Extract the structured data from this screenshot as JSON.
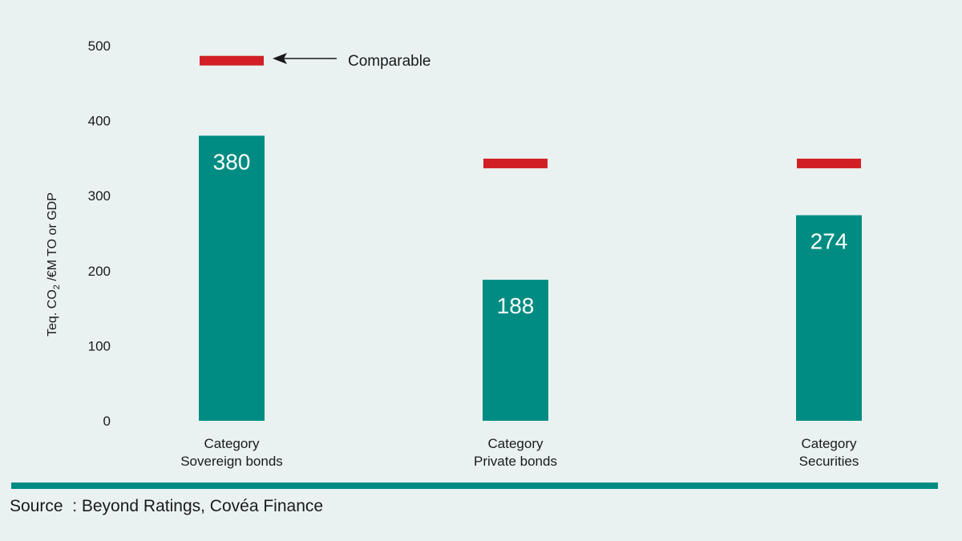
{
  "chart_data": {
    "type": "bar",
    "categories": [
      [
        "Category",
        "Sovereign bonds"
      ],
      [
        "Category",
        "Private bonds"
      ],
      [
        "Category",
        "Securities"
      ]
    ],
    "series": [
      {
        "values": [
          380,
          188,
          274
        ]
      },
      {
        "values": [
          480,
          343,
          343
        ]
      }
    ],
    "data_labels": [
      "380",
      "188",
      "274"
    ],
    "ylabel": "Teq. CO2 /€M TO or GDP",
    "ylabel_parts": [
      "Teq. CO",
      "2",
      " /€M TO or GDP"
    ],
    "yticks": [
      0,
      100,
      200,
      300,
      400,
      500
    ],
    "ylim": [
      0,
      500
    ],
    "grid": false,
    "annotation": "Comparable",
    "colors": {
      "bar": "#008c82",
      "comparable": "#d21f26"
    }
  },
  "footer": {
    "source": "Source  : Beyond Ratings, Covéa Finance",
    "rule_color": "#008c82"
  }
}
